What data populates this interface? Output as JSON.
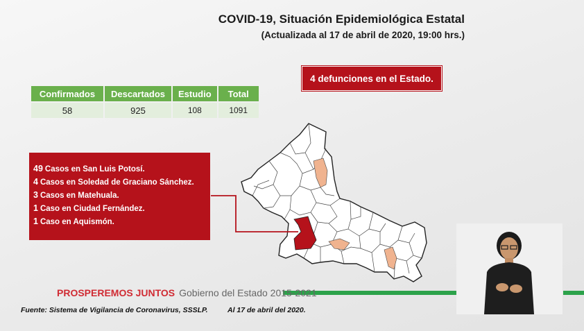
{
  "header": {
    "title": "COVID-19, Situación Epidemiológica Estatal",
    "subtitle": "(Actualizada al 17 de abril de 2020, 19:00 hrs.)"
  },
  "deaths_banner": "4 defunciones en el Estado.",
  "stats": {
    "headers": [
      "Confirmados",
      "Descartados",
      "Estudio",
      "Total"
    ],
    "values": [
      "58",
      "925",
      "108",
      "1091"
    ]
  },
  "cases": [
    {
      "count": "49",
      "text": "Casos en San Luis Potosí."
    },
    {
      "count": "4",
      "text": "Casos en Soledad de Graciano  Sánchez."
    },
    {
      "count": "3",
      "text": "Casos en Matehuala."
    },
    {
      "count": "1",
      "text": "Caso en Ciudad Fernández."
    },
    {
      "count": "1",
      "text": "Caso en Aquismón."
    }
  ],
  "footer": {
    "slogan": "PROSPEREMOS JUNTOS",
    "government": "Gobierno del Estado 2015-2021",
    "source": "Fuente: Sistema de Vigilancia de Coronavirus, SSSLP.",
    "date": "Al 17 de abril del 2020."
  },
  "colors": {
    "red": "#b5121b",
    "green": "#6ab04c",
    "highlight_municipality": "#f0b38f",
    "capital_fill": "#b5121b"
  },
  "icons": {
    "interpreter": "sign-language-interpreter"
  }
}
